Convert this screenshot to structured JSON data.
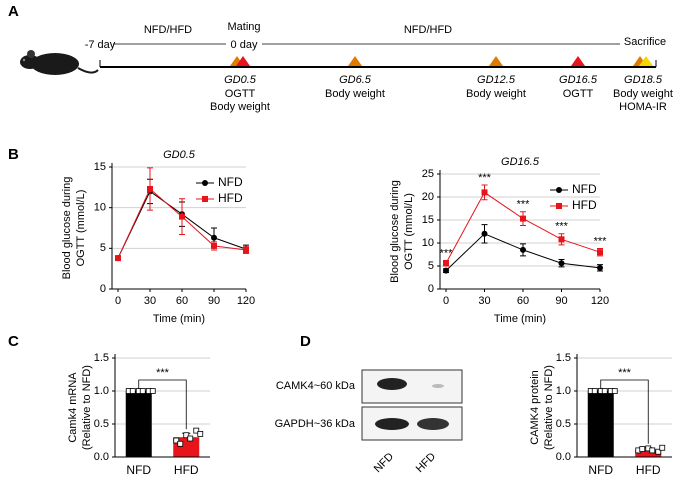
{
  "panels": [
    "A",
    "B",
    "C",
    "D"
  ],
  "timeline": {
    "start_label": "-7 day",
    "phase1": "NFD/HFD",
    "mating": "Mating",
    "zero_label": "0 day",
    "phase2": "NFD/HFD",
    "end_label": "Sacrifice",
    "events": [
      {
        "label": "GD0.5",
        "notes": [
          "OGTT",
          "Body weight"
        ],
        "colors": [
          "#e07b00",
          "#e8141c"
        ]
      },
      {
        "label": "GD6.5",
        "notes": [
          "Body weight"
        ],
        "colors": [
          "#e07b00"
        ]
      },
      {
        "label": "GD12.5",
        "notes": [
          "Body weight"
        ],
        "colors": [
          "#e07b00"
        ]
      },
      {
        "label": "GD16.5",
        "notes": [
          "OGTT"
        ],
        "colors": [
          "#e8141c"
        ]
      },
      {
        "label": "GD18.5",
        "notes": [
          "Body weight",
          "HOMA-IR"
        ],
        "colors": [
          "#e07b00",
          "#f5d800"
        ]
      }
    ]
  },
  "blot": {
    "bands": [
      "CAMK4~60 kDa",
      "GAPDH~36 kDa"
    ],
    "lanes": [
      "NFD",
      "HFD"
    ]
  },
  "chart_data": [
    {
      "type": "line",
      "title": "GD0.5",
      "x": [
        0,
        30,
        60,
        90,
        120
      ],
      "xlim": [
        0,
        120
      ],
      "xticks": [
        0,
        30,
        60,
        90,
        120
      ],
      "ylim": [
        0,
        15
      ],
      "yticks": [
        0,
        5,
        10,
        15
      ],
      "grid": true,
      "legend": "upper right",
      "xlabel": "Time (min)",
      "ylabel": [
        "Blood glucose during",
        "OGTT (mmol/L)"
      ],
      "series": [
        {
          "name": "NFD",
          "color": "#000000",
          "marker": "circle",
          "values": [
            3.8,
            12.0,
            9.2,
            6.3,
            4.9
          ],
          "errors": [
            0.2,
            1.5,
            1.5,
            1.2,
            0.5
          ]
        },
        {
          "name": "HFD",
          "color": "#e8141c",
          "marker": "square",
          "values": [
            3.8,
            12.3,
            8.9,
            5.3,
            4.8
          ],
          "errors": [
            0.2,
            2.6,
            2.2,
            0.5,
            0.4
          ]
        }
      ]
    },
    {
      "type": "line",
      "title": "GD16.5",
      "x": [
        0,
        30,
        60,
        90,
        120
      ],
      "xlim": [
        0,
        120
      ],
      "xticks": [
        0,
        30,
        60,
        90,
        120
      ],
      "ylim": [
        0,
        25
      ],
      "yticks": [
        0,
        5,
        10,
        15,
        20,
        25
      ],
      "grid": true,
      "legend": "upper right",
      "xlabel": "Time (min)",
      "ylabel": [
        "Blood glucose during",
        "OGTT (mmol/L)"
      ],
      "significance": [
        "***",
        "***",
        "***",
        "***",
        "***"
      ],
      "series": [
        {
          "name": "NFD",
          "color": "#000000",
          "marker": "circle",
          "values": [
            4.0,
            12.0,
            8.5,
            5.6,
            4.6
          ],
          "errors": [
            0.4,
            2.0,
            1.3,
            0.8,
            0.7
          ]
        },
        {
          "name": "HFD",
          "color": "#e8141c",
          "marker": "square",
          "values": [
            5.6,
            21.0,
            15.3,
            10.8,
            8.0
          ],
          "errors": [
            0.6,
            1.6,
            1.5,
            1.2,
            0.8
          ]
        }
      ]
    },
    {
      "type": "bar",
      "categories": [
        "NFD",
        "HFD"
      ],
      "values": [
        1.0,
        0.3
      ],
      "errors": [
        0.0,
        0.06
      ],
      "colors": [
        "#000000",
        "#e8141c"
      ],
      "points": [
        [
          1,
          1,
          1,
          1,
          1,
          1
        ],
        [
          0.25,
          0.33,
          0.4,
          0.2,
          0.28,
          0.35
        ]
      ],
      "ylim": [
        0,
        1.5
      ],
      "yticks": [
        {
          "value": 0,
          "label": "0.0"
        },
        {
          "value": 0.5,
          "label": "0.5"
        },
        {
          "value": 1,
          "label": "1.0"
        },
        {
          "value": 1.5,
          "label": "1.5"
        }
      ],
      "grid": true,
      "ylabel": [
        "Camk4 mRNA",
        "(Relative to NFD)"
      ],
      "significance": "***"
    },
    {
      "type": "bar",
      "categories": [
        "NFD",
        "HFD"
      ],
      "values": [
        1.0,
        0.11
      ],
      "errors": [
        0.0,
        0.03
      ],
      "colors": [
        "#000000",
        "#e8141c"
      ],
      "points": [
        [
          1,
          1,
          1,
          1,
          1,
          1
        ],
        [
          0.1,
          0.13,
          0.08,
          0.12,
          0.1,
          0.14
        ]
      ],
      "ylim": [
        0,
        1.5
      ],
      "yticks": [
        {
          "value": 0,
          "label": "0.0"
        },
        {
          "value": 0.5,
          "label": "0.5"
        },
        {
          "value": 1,
          "label": "1.0"
        },
        {
          "value": 1.5,
          "label": "1.5"
        }
      ],
      "grid": true,
      "ylabel": [
        "CAMK4 protein",
        "(Relative to NFD)"
      ],
      "significance": "***"
    }
  ]
}
